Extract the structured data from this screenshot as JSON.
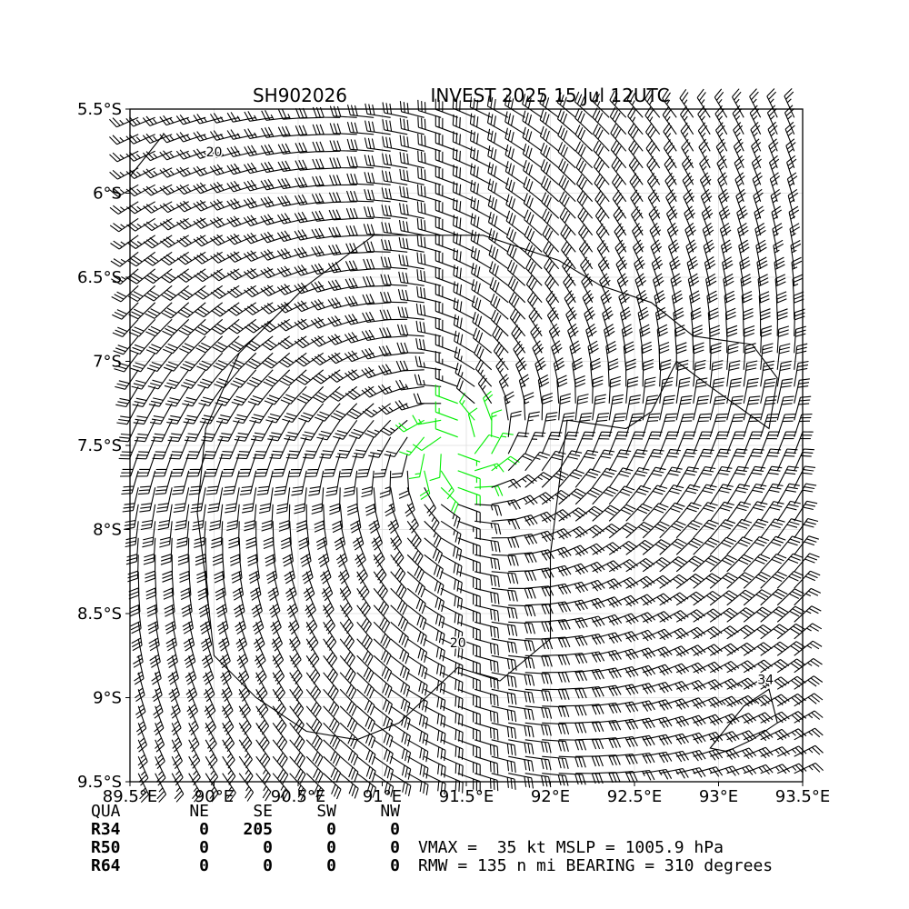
{
  "chart_data": {
    "type": "wind-barb-map",
    "title_left": "SH902026",
    "title_right": "INVEST 2025 15 Jul 12UTC",
    "xlim": [
      89.5,
      93.5
    ],
    "ylim": [
      -9.5,
      -5.5
    ],
    "x_ticks": [
      89.5,
      90.0,
      90.5,
      91.0,
      91.5,
      92.0,
      92.5,
      93.0,
      93.5
    ],
    "x_tick_labels": [
      "89.5°E",
      "90°E",
      "90.5°E",
      "91°E",
      "91.5°E",
      "92°E",
      "92.5°E",
      "93°E",
      "93.5°E"
    ],
    "y_ticks": [
      -5.5,
      -6.0,
      -6.5,
      -7.0,
      -7.5,
      -8.0,
      -8.5,
      -9.0,
      -9.5
    ],
    "y_tick_labels": [
      "5.5°S",
      "6°S",
      "6.5°S",
      "7°S",
      "7.5°S",
      "8°S",
      "8.5°S",
      "9°S",
      "9.5°S"
    ],
    "grid": true,
    "center": {
      "lon": 91.45,
      "lat": -7.52
    },
    "barb_colors": {
      "below_20": "#00ee00",
      "20_to_34": "#000000",
      "above_34": "#f0b400"
    },
    "contours": [
      {
        "level": "20",
        "label_lon": 90.0,
        "label_lat": -5.78
      },
      {
        "level": "20",
        "label_lon": 91.45,
        "label_lat": -8.7
      },
      {
        "level": "34",
        "label_lon": 93.28,
        "label_lat": -8.92
      }
    ]
  },
  "table": {
    "header": [
      "QUA",
      "NE",
      "SE",
      "SW",
      "NW"
    ],
    "rows": [
      [
        "R34",
        "0",
        "205",
        "0",
        "0"
      ],
      [
        "R50",
        "0",
        "0",
        "0",
        "0"
      ],
      [
        "R64",
        "0",
        "0",
        "0",
        "0"
      ]
    ]
  },
  "summary": {
    "line1": "VMAX =  35 kt MSLP = 1005.9 hPa",
    "line2": "RMW = 135 n mi BEARING = 310 degrees"
  }
}
